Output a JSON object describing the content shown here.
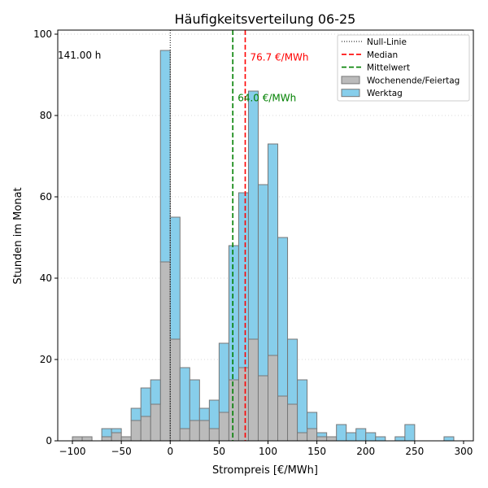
{
  "chart_data": {
    "type": "bar",
    "title": "Häufigkeitsverteilung 06-25",
    "xlabel": "Strompreis [€/MWh]",
    "ylabel": "Stunden im Monat",
    "xlim": [
      -115,
      310
    ],
    "ylim": [
      0,
      101
    ],
    "xticks": [
      -100,
      -50,
      0,
      50,
      100,
      150,
      200,
      250,
      300
    ],
    "yticks": [
      0,
      20,
      40,
      60,
      80,
      100
    ],
    "grid": "y-dotted",
    "bin_width": 10,
    "series": [
      {
        "name": "Wochenende/Feiertag",
        "color": "#bbbbbb",
        "bins": [
          {
            "x0": -100,
            "value": 1
          },
          {
            "x0": -90,
            "value": 1
          },
          {
            "x0": -70,
            "value": 1
          },
          {
            "x0": -60,
            "value": 2
          },
          {
            "x0": -50,
            "value": 1
          },
          {
            "x0": -40,
            "value": 5
          },
          {
            "x0": -30,
            "value": 6
          },
          {
            "x0": -20,
            "value": 9
          },
          {
            "x0": -10,
            "value": 44
          },
          {
            "x0": 0,
            "value": 25
          },
          {
            "x0": 10,
            "value": 3
          },
          {
            "x0": 20,
            "value": 5
          },
          {
            "x0": 30,
            "value": 5
          },
          {
            "x0": 40,
            "value": 3
          },
          {
            "x0": 50,
            "value": 7
          },
          {
            "x0": 60,
            "value": 15
          },
          {
            "x0": 70,
            "value": 18
          },
          {
            "x0": 80,
            "value": 25
          },
          {
            "x0": 90,
            "value": 16
          },
          {
            "x0": 100,
            "value": 21
          },
          {
            "x0": 110,
            "value": 11
          },
          {
            "x0": 120,
            "value": 9
          },
          {
            "x0": 130,
            "value": 2
          },
          {
            "x0": 140,
            "value": 3
          },
          {
            "x0": 150,
            "value": 1
          },
          {
            "x0": 160,
            "value": 1
          }
        ]
      },
      {
        "name": "Werktag",
        "color": "#87ceeb",
        "bins": [
          {
            "x0": -70,
            "value": 2
          },
          {
            "x0": -60,
            "value": 1
          },
          {
            "x0": -40,
            "value": 3
          },
          {
            "x0": -30,
            "value": 7
          },
          {
            "x0": -20,
            "value": 6
          },
          {
            "x0": -10,
            "value": 52
          },
          {
            "x0": 0,
            "value": 30
          },
          {
            "x0": 10,
            "value": 15
          },
          {
            "x0": 20,
            "value": 10
          },
          {
            "x0": 30,
            "value": 3
          },
          {
            "x0": 40,
            "value": 7
          },
          {
            "x0": 50,
            "value": 17
          },
          {
            "x0": 60,
            "value": 33
          },
          {
            "x0": 70,
            "value": 43
          },
          {
            "x0": 80,
            "value": 61
          },
          {
            "x0": 90,
            "value": 47
          },
          {
            "x0": 100,
            "value": 52
          },
          {
            "x0": 110,
            "value": 39
          },
          {
            "x0": 120,
            "value": 16
          },
          {
            "x0": 130,
            "value": 13
          },
          {
            "x0": 140,
            "value": 4
          },
          {
            "x0": 150,
            "value": 1
          },
          {
            "x0": 170,
            "value": 4
          },
          {
            "x0": 180,
            "value": 2
          },
          {
            "x0": 190,
            "value": 3
          },
          {
            "x0": 200,
            "value": 2
          },
          {
            "x0": 210,
            "value": 1
          },
          {
            "x0": 230,
            "value": 1
          },
          {
            "x0": 240,
            "value": 4
          },
          {
            "x0": 280,
            "value": 1
          }
        ]
      }
    ],
    "vlines": [
      {
        "name": "Null-Linie",
        "x": 0,
        "color": "#000000",
        "style": "dotted"
      },
      {
        "name": "Median",
        "x": 76.7,
        "color": "#ff0000",
        "style": "dashed",
        "label": "76.7 €/MWh"
      },
      {
        "name": "Mittelwert",
        "x": 64.0,
        "color": "#008000",
        "style": "dashed",
        "label": "64.0 €/MWh"
      }
    ],
    "annotations": [
      {
        "text": "141.00 h",
        "x": -120,
        "y": 94
      }
    ],
    "legend": {
      "position": "top-right",
      "entries": [
        {
          "label": "Null-Linie",
          "kind": "line",
          "color": "#000000",
          "style": "dotted"
        },
        {
          "label": "Median",
          "kind": "line",
          "color": "#ff0000",
          "style": "dashed"
        },
        {
          "label": "Mittelwert",
          "kind": "line",
          "color": "#008000",
          "style": "dashed"
        },
        {
          "label": "Wochenende/Feiertag",
          "kind": "patch",
          "color": "#bbbbbb"
        },
        {
          "label": "Werktag",
          "kind": "patch",
          "color": "#87ceeb"
        }
      ]
    }
  }
}
